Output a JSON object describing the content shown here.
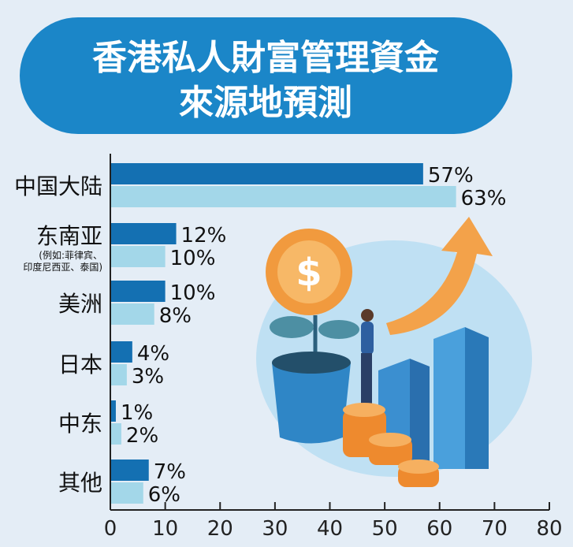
{
  "title_lines": [
    "香港私人財富管理資金",
    "來源地預測"
  ],
  "colors": {
    "background": "#e4edf6",
    "title_bg": "#1b86c8",
    "series_dark": "#1470b2",
    "series_light": "#a3d7e9"
  },
  "chart_data": {
    "type": "bar",
    "orientation": "horizontal",
    "title": "香港私人財富管理資金來源地預測",
    "categories": [
      "中国大陆",
      "东南亚",
      "美洲",
      "日本",
      "中东",
      "其他"
    ],
    "category_notes": {
      "东南亚": "(例如:菲律宾、印度尼西亚、泰国)"
    },
    "series": [
      {
        "values": [
          57,
          12,
          10,
          4,
          1,
          7
        ],
        "color": "#1470b2"
      },
      {
        "values": [
          63,
          10,
          8,
          3,
          2,
          6
        ],
        "color": "#a3d7e9"
      }
    ],
    "value_suffix": "%",
    "xlim": [
      0,
      80
    ],
    "xticks": [
      0,
      10,
      20,
      30,
      40,
      50,
      60,
      70,
      80
    ],
    "grid": false,
    "legend": "none"
  }
}
